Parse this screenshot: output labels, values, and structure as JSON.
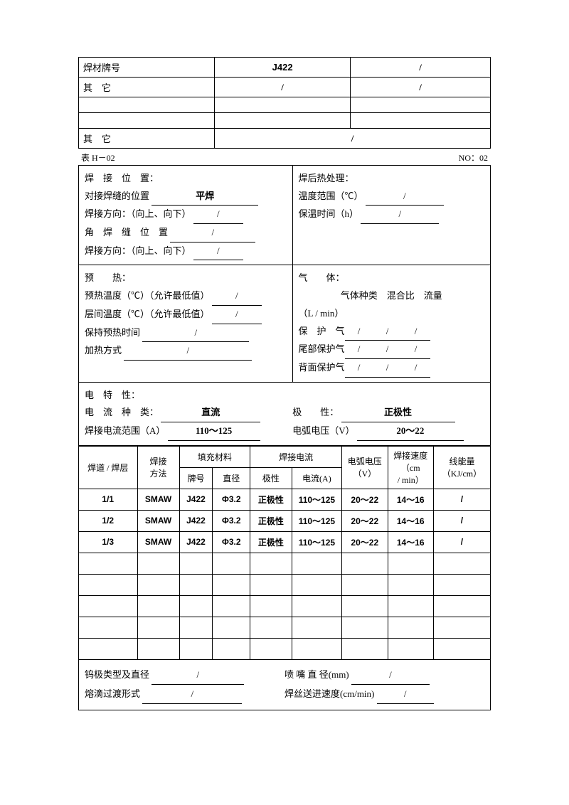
{
  "top_table": {
    "r1c1": "焊材牌号",
    "r1c2": "J422",
    "r1c3": "/",
    "r2c1": "其　它",
    "r2c2": "/",
    "r2c3": "/",
    "r5c1": "其　它",
    "r5c2": "/"
  },
  "table_label_left": "表 H－02",
  "table_label_right": "NO：02",
  "weld_position": {
    "title": "焊　接　位　置：",
    "butt_label": "对接焊缝的位置",
    "butt_value": "平焊",
    "dir1_label": "焊接方向：（向上、向下）",
    "dir1_value": "/",
    "fillet_label": "角　焊　缝　位　置",
    "fillet_value": "/",
    "dir2_label": "焊接方向：（向上、向下）",
    "dir2_value": "/"
  },
  "pwht": {
    "title": "焊后热处理：",
    "temp_label": "温度范围（℃）",
    "temp_value": "/",
    "hold_label": "保温时间（h）",
    "hold_value": "/"
  },
  "preheat": {
    "title": "预　　热：",
    "pre_label": "预热温度（℃）（允许最低值）",
    "pre_value": "/",
    "inter_label": "层间温度（℃）（允许最低值）",
    "inter_value": "/",
    "hold_label": "保持预热时间",
    "hold_value": "/",
    "method_label": "加热方式",
    "method_value": "/"
  },
  "gas": {
    "title": "气　　体：",
    "header": "气体种类　混合比　流量",
    "unit": "（L / min）",
    "shield_label": "保　护　气",
    "trail_label": "尾部保护气",
    "back_label": "背面保护气",
    "v1": "/",
    "v2": "/",
    "v3": "/"
  },
  "electrical": {
    "title": "电　特　性：",
    "current_type_label": "电　流　种　类：",
    "current_type_value": "直流",
    "polarity_label": "极　　性：",
    "polarity_value": "正极性",
    "current_range_label": "焊接电流范围（A）",
    "current_range_value": "110～125",
    "voltage_label": "电弧电压（V）",
    "voltage_value": "20～22"
  },
  "param_table": {
    "headers": {
      "pass": "焊道 / 焊层",
      "method": "焊接\n方法",
      "filler": "填充材料",
      "filler_brand": "牌号",
      "filler_dia": "直径",
      "current": "焊接电流",
      "polarity": "极性",
      "amps": "电流(A)",
      "voltage": "电弧电压\n（V）",
      "speed": "焊接速度\n（cm\n/ min）",
      "energy": "线能量\n（KJ/cm）"
    },
    "rows": [
      {
        "pass": "1/1",
        "method": "SMAW",
        "brand": "J422",
        "dia": "Φ3.2",
        "pol": "正极性",
        "amps": "110～125",
        "volt": "20～22",
        "speed": "14～16",
        "energy": "/"
      },
      {
        "pass": "1/2",
        "method": "SMAW",
        "brand": "J422",
        "dia": "Φ3.2",
        "pol": "正极性",
        "amps": "110～125",
        "volt": "20～22",
        "speed": "14～16",
        "energy": "/"
      },
      {
        "pass": "1/3",
        "method": "SMAW",
        "brand": "J422",
        "dia": "Φ3.2",
        "pol": "正极性",
        "amps": "110～125",
        "volt": "20～22",
        "speed": "14～16",
        "energy": "/"
      }
    ],
    "empty_rows": 5
  },
  "bottom": {
    "tungsten_label": "钨极类型及直径",
    "tungsten_value": "/",
    "nozzle_label": "喷 嘴 直 径(mm)",
    "nozzle_value": "/",
    "transfer_label": "熔滴过渡形式",
    "transfer_value": "/",
    "wire_label": "焊丝送进速度(cm/min)",
    "wire_value": "/"
  }
}
